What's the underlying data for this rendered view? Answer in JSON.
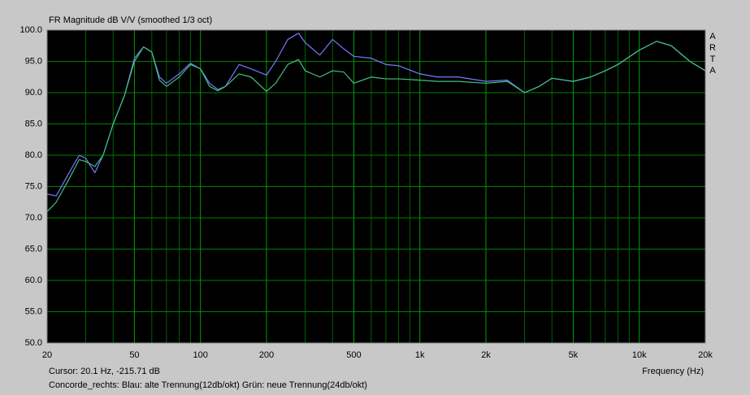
{
  "chart_data": {
    "type": "line",
    "title": "FR Magnitude dB V/V (smoothed 1/3 oct)",
    "x_label": "Frequency (Hz)",
    "cursor": "Cursor: 20.1 Hz, -215.71 dB",
    "caption": "Concorde_rechts: Blau: alte Trennung(12db/okt) Grün: neue Trennung(24db/okt)",
    "brand": [
      "A",
      "R",
      "T",
      "A"
    ],
    "xlog": true,
    "grid": true,
    "xlim": [
      20,
      20000
    ],
    "ylim": [
      50,
      100
    ],
    "xticks": [
      20,
      50,
      100,
      200,
      500,
      {
        "value": 1000,
        "label": "1k"
      },
      {
        "value": 2000,
        "label": "2k"
      },
      {
        "value": 5000,
        "label": "5k"
      },
      {
        "value": 10000,
        "label": "10k"
      },
      {
        "value": 20000,
        "label": "20k"
      }
    ],
    "xminorticks": [
      30,
      40,
      60,
      70,
      80,
      90,
      300,
      400,
      600,
      700,
      800,
      900,
      3000,
      4000,
      6000,
      7000,
      8000,
      9000
    ],
    "yticks": [
      {
        "value": 50,
        "label": "50.0"
      },
      {
        "value": 55,
        "label": "55.0"
      },
      {
        "value": 60,
        "label": "60.0"
      },
      {
        "value": 65,
        "label": "65.0"
      },
      {
        "value": 70,
        "label": "70.0"
      },
      {
        "value": 75,
        "label": "75.0"
      },
      {
        "value": 80,
        "label": "80.0"
      },
      {
        "value": 85,
        "label": "85.0"
      },
      {
        "value": 90,
        "label": "90.0"
      },
      {
        "value": 95,
        "label": "95.0"
      },
      {
        "value": 100,
        "label": "100.0"
      }
    ],
    "x": [
      20,
      22,
      25,
      28,
      30,
      33,
      36,
      40,
      45,
      50,
      55,
      60,
      65,
      70,
      80,
      90,
      100,
      110,
      120,
      130,
      150,
      170,
      200,
      220,
      250,
      280,
      300,
      350,
      400,
      450,
      500,
      600,
      700,
      800,
      1000,
      1200,
      1500,
      2000,
      2500,
      3000,
      3500,
      4000,
      5000,
      6000,
      7000,
      8000,
      10000,
      12000,
      14000,
      17000,
      20000
    ],
    "series": [
      {
        "color": "#7878ff",
        "values": [
          73.8,
          73.5,
          77,
          80,
          79.5,
          77.2,
          80,
          85,
          89.5,
          95.5,
          97.3,
          96.5,
          92.5,
          91.5,
          93,
          94.7,
          93.8,
          91.5,
          90.5,
          91,
          94.5,
          93.8,
          92.8,
          95,
          98.5,
          99.5,
          98,
          96,
          98.5,
          97,
          95.8,
          95.5,
          94.5,
          94.3,
          93,
          92.5,
          92.5,
          91.8,
          92,
          90,
          91,
          92.3,
          91.8,
          92.5,
          93.5,
          94.5,
          96.8,
          98.2,
          97.5,
          95,
          93.5
        ]
      },
      {
        "color": "#40c080",
        "values": [
          71,
          72.5,
          76,
          79.3,
          79,
          78.2,
          80,
          85,
          89.5,
          95,
          97.3,
          96.5,
          92,
          91,
          92.5,
          94.5,
          93.8,
          91,
          90.3,
          91,
          93,
          92.5,
          90.2,
          91.5,
          94.5,
          95.3,
          93.5,
          92.5,
          93.5,
          93.3,
          91.5,
          92.5,
          92.2,
          92.2,
          92,
          91.8,
          91.8,
          91.5,
          91.8,
          90,
          91,
          92.3,
          91.8,
          92.5,
          93.5,
          94.5,
          96.8,
          98.2,
          97.5,
          95,
          93.5
        ]
      }
    ]
  }
}
